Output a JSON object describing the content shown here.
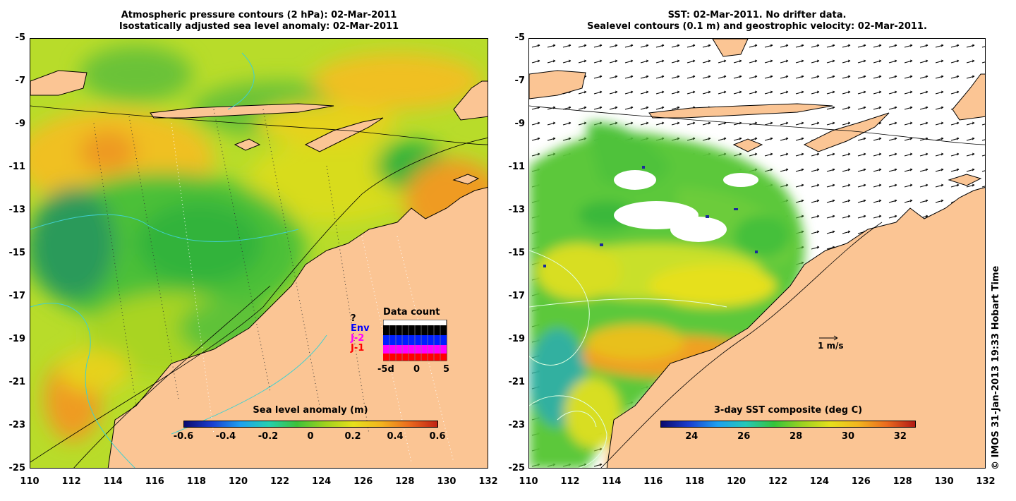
{
  "left_panel": {
    "title_line1": "Atmospheric pressure contours (2 hPa): 02-Mar-2011",
    "title_line2": "Isostatically adjusted sea level anomaly: 02-Mar-2011",
    "colorbar_title": "Sea level anomaly (m)",
    "colorbar_ticks": [
      "-0.6",
      "-0.4",
      "-0.2",
      "0",
      "0.2",
      "0.4",
      "0.6"
    ],
    "data_count": {
      "title": "Data count",
      "legend": [
        {
          "label": "?",
          "color": "#000000"
        },
        {
          "label": "Env",
          "color": "#0000ff"
        },
        {
          "label": "J-2",
          "color": "#ff00ff"
        },
        {
          "label": "J-1",
          "color": "#ff0000"
        }
      ],
      "axis_labels": [
        "-5d",
        "0",
        "5"
      ]
    }
  },
  "right_panel": {
    "title_line1": "SST: 02-Mar-2011. No drifter data.",
    "title_line2": "Sealevel contours (0.1 m) and geostrophic velocity: 02-Mar-2011.",
    "colorbar_title": "3-day SST composite (deg C)",
    "colorbar_ticks": [
      "24",
      "26",
      "28",
      "30",
      "32"
    ],
    "velocity_scale": "1 m/s"
  },
  "y_ticks": [
    "-5",
    "-7",
    "-9",
    "-11",
    "-13",
    "-15",
    "-17",
    "-19",
    "-21",
    "-23",
    "-25"
  ],
  "x_ticks": [
    "110",
    "112",
    "114",
    "116",
    "118",
    "120",
    "122",
    "124",
    "126",
    "128",
    "130",
    "132"
  ],
  "copyright": "© IMOS 31-Jan-2013 19:33 Hobart Time",
  "colors": {
    "land": "#fbc594",
    "sea_green": "#35c43a",
    "sea_yellow": "#d6e21c"
  }
}
